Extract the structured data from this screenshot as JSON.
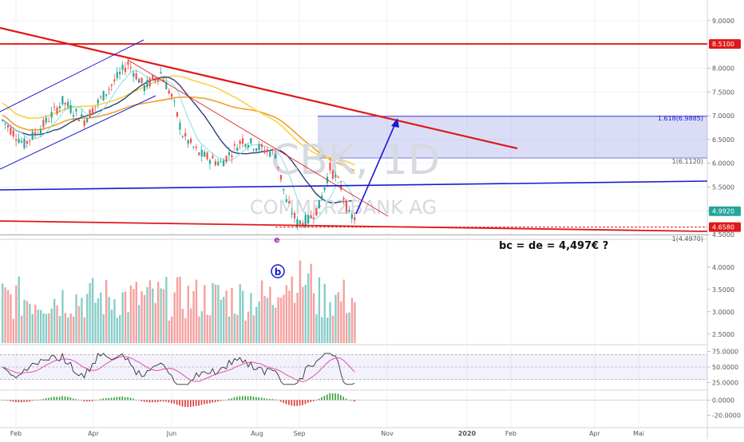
{
  "chart_data": {
    "type": "candlestick",
    "watermark": {
      "symbol": "CBK, 1D",
      "name": "COMMERZBANK AG"
    },
    "x_axis": {
      "tick_labels": [
        "Feb",
        "Apr",
        "Jun",
        "Aug",
        "Sep",
        "Nov",
        "2020",
        "Feb",
        "Apr",
        "Mai"
      ]
    },
    "price_axis": {
      "range": [
        4.4,
        9.3
      ],
      "ticks": [
        "9.0000",
        "8.0000",
        "7.5000",
        "7.0000",
        "6.5000",
        "6.0000",
        "5.5000",
        "5.0000",
        "4.5000"
      ],
      "tick_values": [
        9.0,
        8.0,
        7.5,
        7.0,
        6.5,
        6.0,
        5.5,
        5.0,
        4.5
      ],
      "badges": [
        {
          "label": "8.5100",
          "value": 8.51,
          "color": "#e01818"
        },
        {
          "label": "4.9920",
          "value": 4.992,
          "color": "#26a69a"
        },
        {
          "label": "4.6580",
          "value": 4.658,
          "color": "#e01818"
        }
      ]
    },
    "volume_axis": {
      "ticks": [
        "4.0000",
        "3.5000",
        "3.0000",
        "2.5000"
      ],
      "tick_values": [
        4.0,
        3.5,
        3.0,
        2.5
      ],
      "range": [
        2.3,
        4.3
      ]
    },
    "rsi_axis": {
      "ticks": [
        "75.0000",
        "50.0000",
        "25.0000"
      ],
      "tick_values": [
        75,
        50,
        25
      ],
      "range": [
        14,
        86
      ],
      "band": [
        30,
        70
      ]
    },
    "macd_axis": {
      "ticks": [
        "0.0000",
        "-20.0000"
      ],
      "tick_values": [
        0,
        -20
      ],
      "range": [
        -30,
        12
      ]
    },
    "fibonacci": [
      {
        "label": "1.618(6.9885)",
        "value": 6.9885
      },
      {
        "label": "1(6.1120)",
        "value": 6.112
      },
      {
        "label": "1(4.4970)",
        "value": 4.497
      }
    ],
    "annotations": {
      "wave_e": "e",
      "wave_b": "b",
      "note": "bc = de = 4,497€ ?"
    },
    "horizontal_lines": [
      {
        "value": 8.51,
        "color": "#e01818"
      },
      {
        "value": 4.658,
        "color": "#e01818",
        "style": "dashed"
      }
    ],
    "series_colors": {
      "up": "#26a69a",
      "down": "#ef5350",
      "trendline": "#e01818",
      "channel": "#1a1ad0",
      "forecast_arrow": "#1a1ad0",
      "ma_yellow": "#f5d442",
      "ma_orange": "#f0a030",
      "ma_navy": "#2c3e7a",
      "ma_cyan": "#7fe0e0"
    }
  }
}
